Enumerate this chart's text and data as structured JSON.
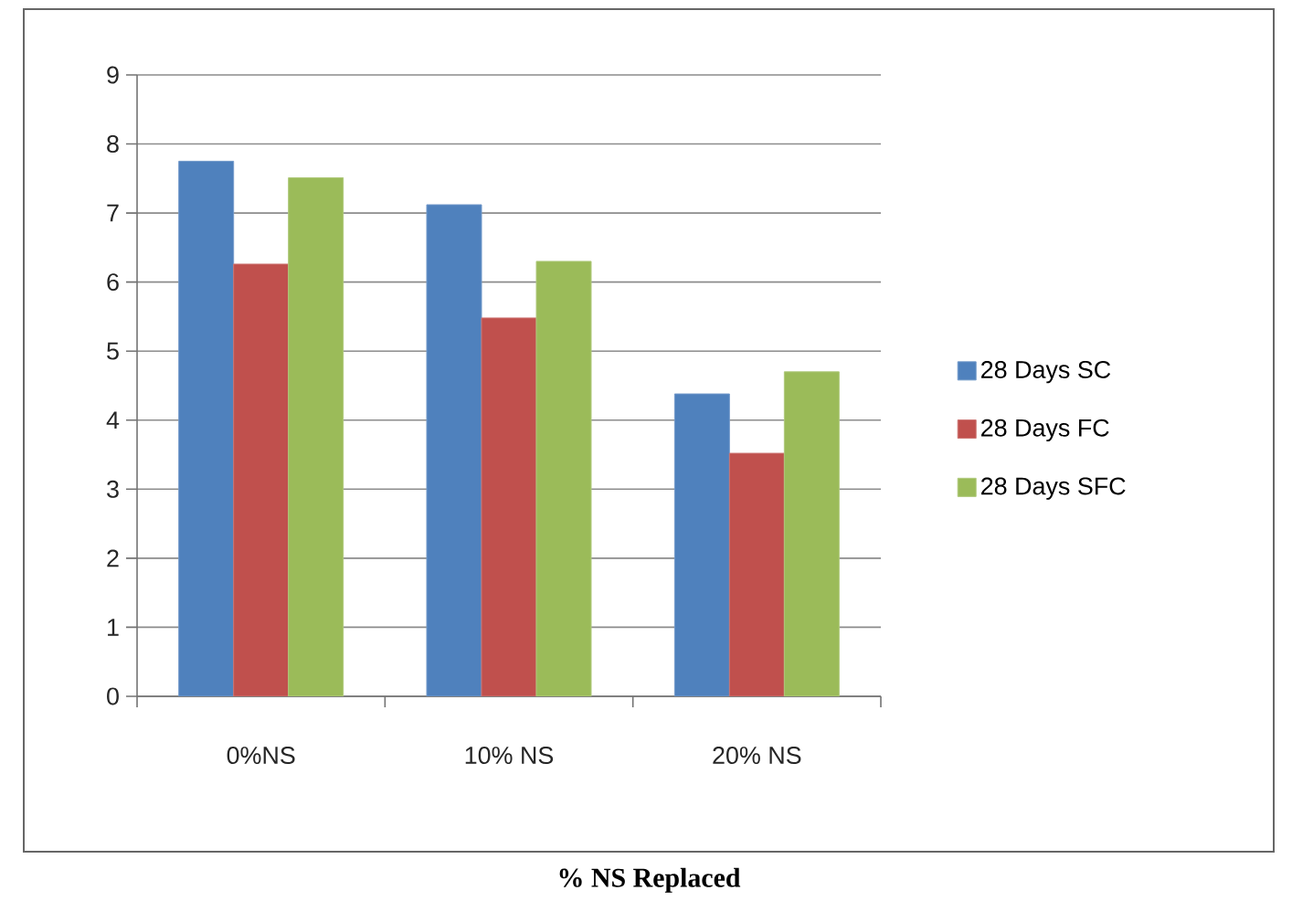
{
  "chart_data": {
    "type": "bar",
    "xlabel": "% NS Replaced",
    "categories": [
      "0%NS",
      "10% NS",
      "20% NS"
    ],
    "series": [
      {
        "name": "28 Days SC",
        "color": "#4f81bd",
        "values": [
          7.75,
          7.12,
          4.38
        ]
      },
      {
        "name": "28 Days FC",
        "color": "#c0504d",
        "values": [
          6.26,
          5.48,
          3.52
        ]
      },
      {
        "name": "28 Days SFC",
        "color": "#9bbb59",
        "values": [
          7.51,
          6.3,
          4.7
        ]
      }
    ],
    "ylim": [
      0,
      9
    ],
    "yticks": [
      0,
      1,
      2,
      3,
      4,
      5,
      6,
      7,
      8,
      9
    ],
    "grid": "y",
    "legend": "right"
  }
}
